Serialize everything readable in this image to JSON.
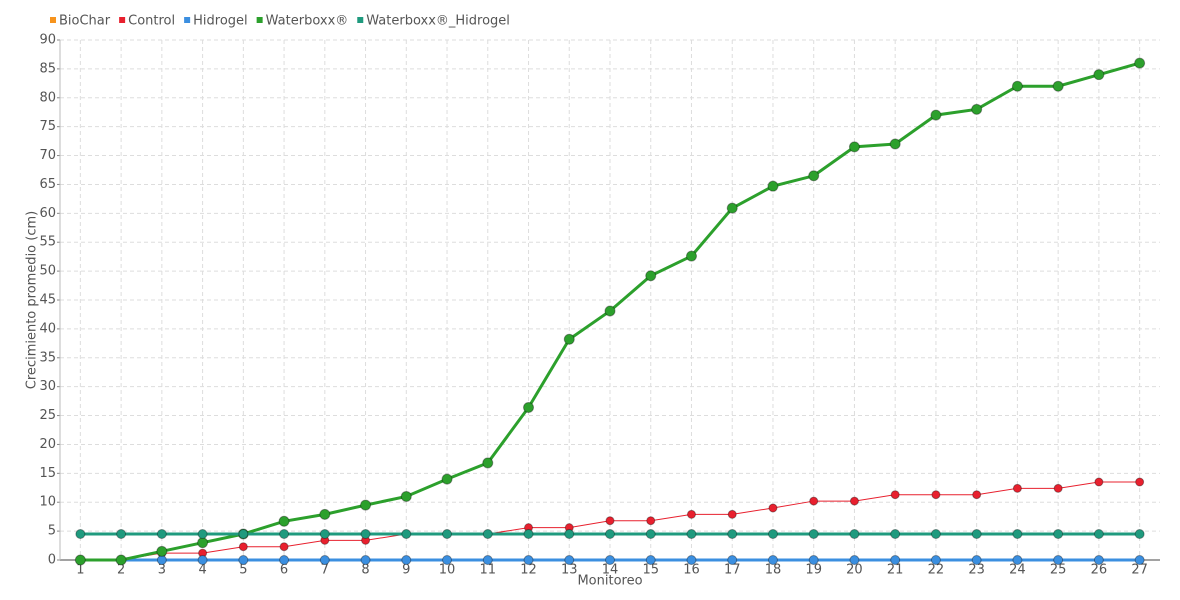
{
  "chart_data": {
    "type": "line",
    "categories": [
      "1",
      "2",
      "3",
      "4",
      "5",
      "6",
      "7",
      "8",
      "9",
      "10",
      "11",
      "12",
      "13",
      "14",
      "15",
      "16",
      "17",
      "18",
      "19",
      "20",
      "21",
      "22",
      "23",
      "24",
      "25",
      "26",
      "27"
    ],
    "series": [
      {
        "name": "BioChar",
        "color": "#f7941d",
        "values": [
          0,
          0,
          0,
          0,
          0,
          0,
          0,
          0,
          0,
          0,
          0,
          0,
          0,
          0,
          0,
          0,
          0,
          0,
          0,
          0,
          0,
          0,
          0,
          0,
          0,
          0,
          0
        ]
      },
      {
        "name": "Control",
        "color": "#e8202e",
        "values": [
          0,
          0,
          1.2,
          1.2,
          2.3,
          2.3,
          3.4,
          3.4,
          4.5,
          4.5,
          4.5,
          5.6,
          5.6,
          6.8,
          6.8,
          7.9,
          7.9,
          9,
          10.2,
          10.2,
          11.3,
          11.3,
          11.3,
          12.4,
          12.4,
          13.5,
          13.5
        ]
      },
      {
        "name": "Hidrogel",
        "color": "#3b8fe0",
        "values": [
          0,
          0,
          0,
          0,
          0,
          0,
          0,
          0,
          0,
          0,
          0,
          0,
          0,
          0,
          0,
          0,
          0,
          0,
          0,
          0,
          0,
          0,
          0,
          0,
          0,
          0,
          0
        ]
      },
      {
        "name": "Waterboxx®",
        "color": "#2ca02c",
        "values": [
          0,
          0,
          1.5,
          3,
          4.5,
          6.7,
          7.9,
          9.5,
          11,
          14,
          16.8,
          26.4,
          38.2,
          43.1,
          49.2,
          52.6,
          60.9,
          64.7,
          66.5,
          71.5,
          72,
          77,
          78,
          82,
          82,
          84,
          86
        ]
      },
      {
        "name": "Waterboxx®_Hidrogel",
        "color": "#1f9a7e",
        "values": [
          4.5,
          4.5,
          4.5,
          4.5,
          4.5,
          4.5,
          4.5,
          4.5,
          4.5,
          4.5,
          4.5,
          4.5,
          4.5,
          4.5,
          4.5,
          4.5,
          4.5,
          4.5,
          4.5,
          4.5,
          4.5,
          4.5,
          4.5,
          4.5,
          4.5,
          4.5,
          4.5
        ]
      }
    ],
    "x_label": "Monitoreo",
    "y_label": "Crecimiento promedio (cm)",
    "ylim": [
      0,
      90
    ],
    "yticks": [
      0,
      5,
      10,
      15,
      20,
      25,
      30,
      35,
      40,
      45,
      50,
      55,
      60,
      65,
      70,
      75,
      80,
      85,
      90
    ],
    "grid": true,
    "legend": "top-left"
  }
}
